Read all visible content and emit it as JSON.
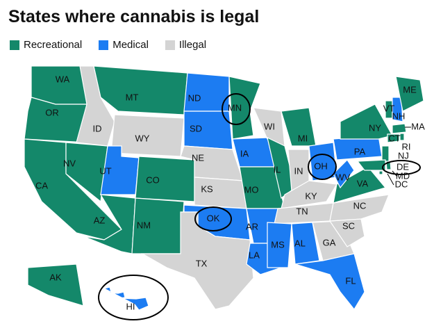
{
  "title": "States where cannabis is legal",
  "legend": [
    {
      "name": "Recreational",
      "color": "#14886a"
    },
    {
      "name": "Medical",
      "color": "#1c7cf2"
    },
    {
      "name": "Illegal",
      "color": "#d4d4d4"
    }
  ],
  "states": [
    {
      "label": "WA",
      "status": "Recreational"
    },
    {
      "label": "OR",
      "status": "Recreational"
    },
    {
      "label": "CA",
      "status": "Recreational"
    },
    {
      "label": "NV",
      "status": "Recreational"
    },
    {
      "label": "ID",
      "status": "Illegal"
    },
    {
      "label": "MT",
      "status": "Recreational"
    },
    {
      "label": "WY",
      "status": "Illegal"
    },
    {
      "label": "UT",
      "status": "Medical"
    },
    {
      "label": "CO",
      "status": "Recreational"
    },
    {
      "label": "AZ",
      "status": "Recreational"
    },
    {
      "label": "NM",
      "status": "Recreational"
    },
    {
      "label": "ND",
      "status": "Medical"
    },
    {
      "label": "SD",
      "status": "Medical"
    },
    {
      "label": "NE",
      "status": "Illegal"
    },
    {
      "label": "KS",
      "status": "Illegal"
    },
    {
      "label": "OK",
      "status": "Medical"
    },
    {
      "label": "TX",
      "status": "Illegal"
    },
    {
      "label": "MN",
      "status": "Recreational"
    },
    {
      "label": "IA",
      "status": "Medical"
    },
    {
      "label": "MO",
      "status": "Recreational"
    },
    {
      "label": "AR",
      "status": "Medical"
    },
    {
      "label": "LA",
      "status": "Medical"
    },
    {
      "label": "WI",
      "status": "Illegal"
    },
    {
      "label": "IL",
      "status": "Recreational"
    },
    {
      "label": "MI",
      "status": "Recreational"
    },
    {
      "label": "IN",
      "status": "Illegal"
    },
    {
      "label": "OH",
      "status": "Medical"
    },
    {
      "label": "KY",
      "status": "Illegal"
    },
    {
      "label": "TN",
      "status": "Illegal"
    },
    {
      "label": "MS",
      "status": "Medical"
    },
    {
      "label": "AL",
      "status": "Medical"
    },
    {
      "label": "GA",
      "status": "Illegal"
    },
    {
      "label": "FL",
      "status": "Medical"
    },
    {
      "label": "SC",
      "status": "Illegal"
    },
    {
      "label": "NC",
      "status": "Illegal"
    },
    {
      "label": "VA",
      "status": "Recreational"
    },
    {
      "label": "WV",
      "status": "Medical"
    },
    {
      "label": "PA",
      "status": "Medical"
    },
    {
      "label": "NY",
      "status": "Recreational"
    },
    {
      "label": "VT",
      "status": "Recreational"
    },
    {
      "label": "NH",
      "status": "Medical"
    },
    {
      "label": "ME",
      "status": "Recreational"
    },
    {
      "label": "MA",
      "status": "Recreational"
    },
    {
      "label": "CT",
      "status": "Recreational"
    },
    {
      "label": "RI",
      "status": "Recreational"
    },
    {
      "label": "NJ",
      "status": "Recreational"
    },
    {
      "label": "DE",
      "status": "Recreational"
    },
    {
      "label": "MD",
      "status": "Recreational"
    },
    {
      "label": "DC",
      "status": "Recreational"
    },
    {
      "label": "AK",
      "status": "Recreational"
    },
    {
      "label": "HI",
      "status": "Medical"
    }
  ]
}
